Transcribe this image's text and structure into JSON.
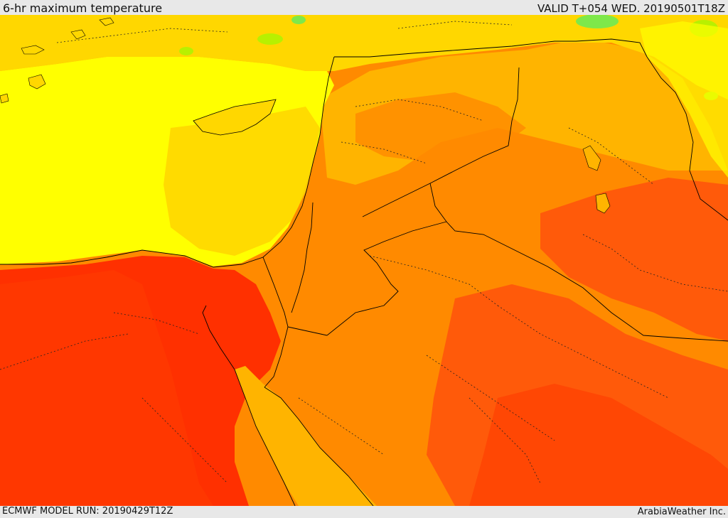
{
  "header": {
    "title": "6-hr maximum temperature",
    "valid": "VALID T+054 WED. 20190501T18Z"
  },
  "footer": {
    "model_run": "ECMWF MODEL RUN: 20190429T12Z",
    "credit": "ArabiaWeather Inc."
  },
  "palette": {
    "coolest": "#7ee84a",
    "cool": "#d4f000",
    "mild": "#ffff00",
    "warm": "#ffd700",
    "warmer": "#ffb400",
    "hot": "#ff8a00",
    "hotter": "#ff5a0a",
    "hottest": "#ff3000",
    "borders": "#000000"
  }
}
